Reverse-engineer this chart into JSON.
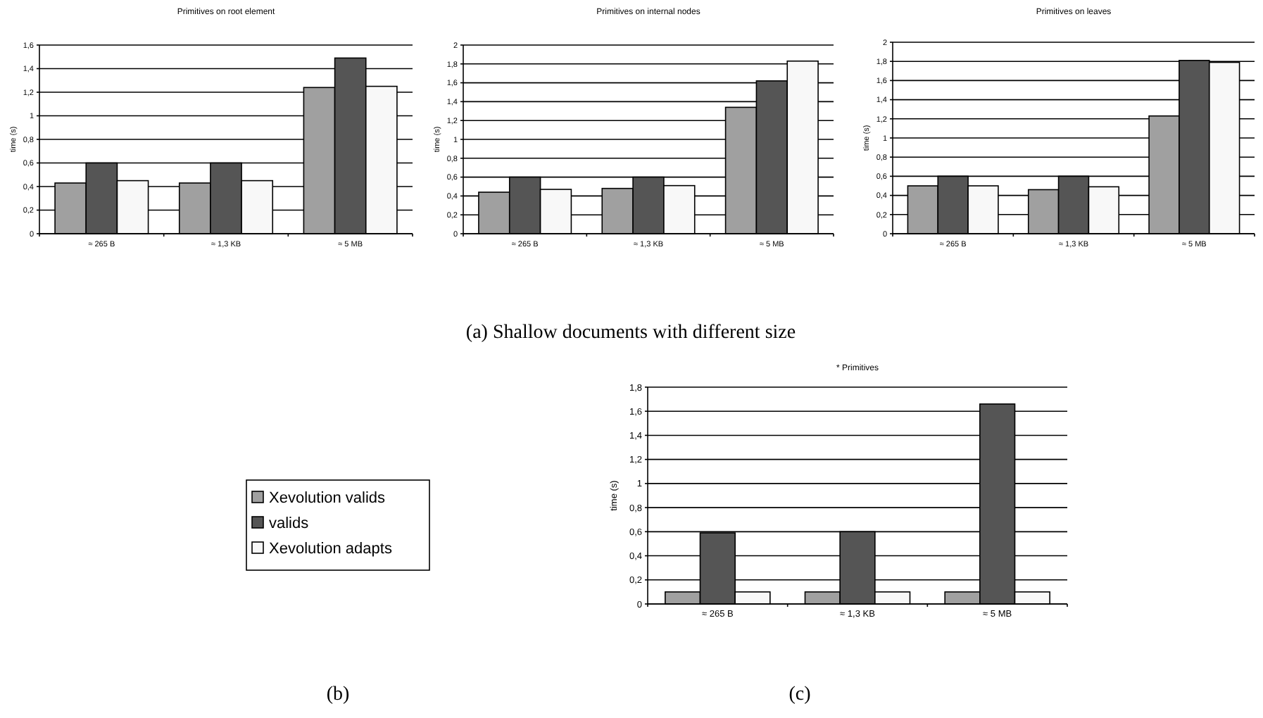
{
  "chart_data": [
    {
      "type": "bar",
      "title": "Primitives on root element",
      "ylabel": "time (s)",
      "categories": [
        "≈ 265 B",
        "≈ 1,3 KB",
        "≈ 5 MB"
      ],
      "ylim": [
        0,
        1.6
      ],
      "yticks": [
        0,
        {
          "value": 0.2,
          "label": "0,2"
        },
        {
          "value": 0.4,
          "label": "0,4"
        },
        {
          "value": 0.6,
          "label": "0,6"
        },
        {
          "value": 0.8,
          "label": "0,8"
        },
        1,
        {
          "value": 1.2,
          "label": "1,2"
        },
        {
          "value": 1.4,
          "label": "1,4"
        },
        {
          "value": 1.6,
          "label": "1,6"
        }
      ],
      "grid": "y",
      "annotations": [
        "(a) Shallow documents with different size"
      ],
      "series": [
        {
          "color": "#a0a0a0",
          "values": [
            0.43,
            0.43,
            1.24
          ]
        },
        {
          "color": "#555555",
          "values": [
            0.6,
            0.6,
            1.49
          ]
        },
        {
          "color": "#f8f8f8",
          "values": [
            0.45,
            0.45,
            1.25
          ]
        }
      ]
    },
    {
      "type": "bar",
      "title": "Primitives on internal nodes",
      "ylabel": "time (s)",
      "categories": [
        "≈ 265 B",
        "≈ 1,3 KB",
        "≈ 5 MB"
      ],
      "ylim": [
        0,
        2
      ],
      "yticks": [
        0,
        {
          "value": 0.2,
          "label": "0,2"
        },
        {
          "value": 0.4,
          "label": "0,4"
        },
        {
          "value": 0.6,
          "label": "0,6"
        },
        {
          "value": 0.8,
          "label": "0,8"
        },
        1,
        {
          "value": 1.2,
          "label": "1,2"
        },
        {
          "value": 1.4,
          "label": "1,4"
        },
        {
          "value": 1.6,
          "label": "1,6"
        },
        {
          "value": 1.8,
          "label": "1,8"
        },
        2
      ],
      "grid": "y",
      "series": [
        {
          "color": "#a0a0a0",
          "values": [
            0.44,
            0.48,
            1.34
          ]
        },
        {
          "color": "#555555",
          "values": [
            0.6,
            0.6,
            1.62
          ]
        },
        {
          "color": "#f8f8f8",
          "values": [
            0.47,
            0.51,
            1.83
          ]
        }
      ]
    },
    {
      "type": "bar",
      "title": "Primitives on leaves",
      "ylabel": "time (s)",
      "categories": [
        "≈ 265 B",
        "≈ 1,3 KB",
        "≈ 5 MB"
      ],
      "ylim": [
        0,
        2
      ],
      "yticks": [
        0,
        {
          "value": 0.2,
          "label": "0,2"
        },
        {
          "value": 0.4,
          "label": "0,4"
        },
        {
          "value": 0.6,
          "label": "0,6"
        },
        {
          "value": 0.8,
          "label": "0,8"
        },
        1,
        {
          "value": 1.2,
          "label": "1,2"
        },
        {
          "value": 1.4,
          "label": "1,4"
        },
        {
          "value": 1.6,
          "label": "1,6"
        },
        {
          "value": 1.8,
          "label": "1,8"
        },
        2
      ],
      "grid": "y",
      "series": [
        {
          "color": "#a0a0a0",
          "values": [
            0.5,
            0.46,
            1.23
          ]
        },
        {
          "color": "#555555",
          "values": [
            0.6,
            0.6,
            1.81
          ]
        },
        {
          "color": "#f8f8f8",
          "values": [
            0.5,
            0.49,
            1.79
          ]
        }
      ]
    },
    {
      "type": "bar",
      "title": "* Primitives",
      "ylabel": "time (s)",
      "categories": [
        "≈ 265 B",
        "≈ 1,3 KB",
        "≈ 5 MB"
      ],
      "ylim": [
        0,
        1.8
      ],
      "yticks": [
        0,
        {
          "value": 0.2,
          "label": "0,2"
        },
        {
          "value": 0.4,
          "label": "0,4"
        },
        {
          "value": 0.6,
          "label": "0,6"
        },
        {
          "value": 0.8,
          "label": "0,8"
        },
        1,
        {
          "value": 1.2,
          "label": "1,2"
        },
        {
          "value": 1.4,
          "label": "1,4"
        },
        {
          "value": 1.6,
          "label": "1,6"
        },
        {
          "value": 1.8,
          "label": "1,8"
        }
      ],
      "grid": "y",
      "legend": "left",
      "annotations": [
        "(b)",
        "(c)"
      ],
      "series": [
        {
          "name": "Xevolution valids",
          "color": "#a0a0a0",
          "values": [
            0.1,
            0.1,
            0.1
          ]
        },
        {
          "name": "valids",
          "color": "#555555",
          "values": [
            0.59,
            0.6,
            1.66
          ]
        },
        {
          "name": "Xevolution adapts",
          "color": "#f8f8f8",
          "values": [
            0.1,
            0.1,
            0.1
          ]
        }
      ]
    }
  ]
}
